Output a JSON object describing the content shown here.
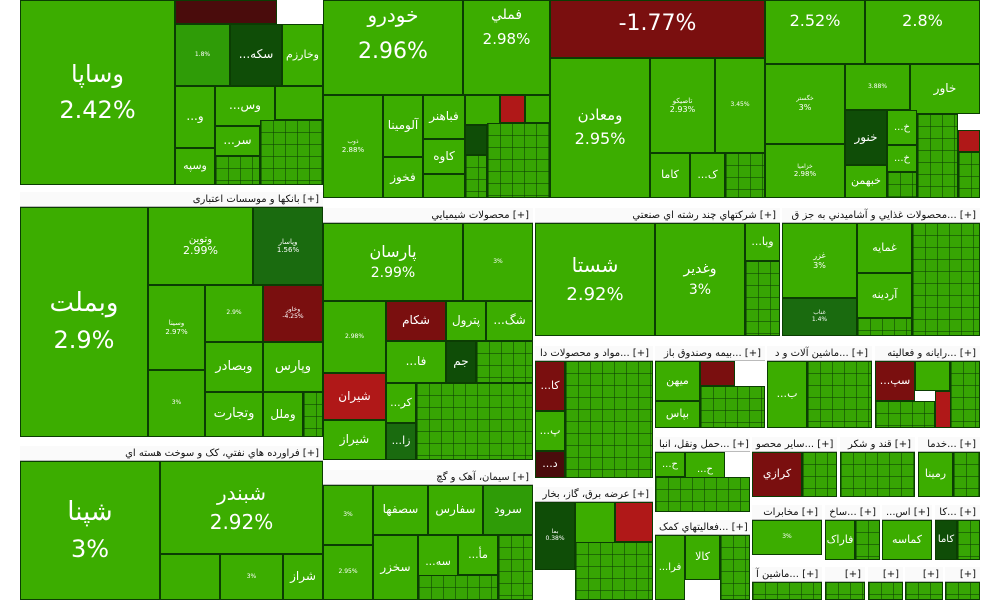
{
  "sectors": {
    "banks": "بانکها و موسسات اعتباری [+]",
    "refinery": "فراورده هاي نفتي، کک و سوخت هسته اي [+]",
    "chemical": "محصولات شيميايي [+]",
    "cement": "سيمان، آهک و گچ [+]",
    "multi": "شرکتهاي چند رشته اي صنعتي [+]",
    "food": "محصولات غذايي و آشاميدني به جز ق... [+]",
    "materials": "مواد و محصولات دا... [+]",
    "insurance": "بيمه وصندوق باز... [+]",
    "machinery": "ماشين آلات و د... [+]",
    "it": "رايانه و فعاليته... [+]",
    "transport": "حمل ونقل، انبا... [+]",
    "otherMining": "ساير محصو... [+]",
    "sugar": "قند و شکر [+]",
    "services": "خدما... [+]",
    "utilities": "عرضه برق، گاز، بخار [+]",
    "auxiliary": "فعاليتهاي کمک... [+]",
    "telecom": "مخابرات [+]",
    "construction": "ساخ... [+]",
    "pharma": "...اس [+]",
    "tile": "کا... [+]",
    "devices": "ماشين آ... [+]",
    "s1": "[+]",
    "s2": "[+]",
    "s3": "[+]",
    "s4": "[+]"
  },
  "tiles": {
    "khodro": {
      "name": "خودرو",
      "pct": "2.96%"
    },
    "famli": {
      "name": "فملي",
      "pct": "2.98%"
    },
    "darkTop": {
      "name": "",
      "pct": "-1.77%"
    },
    "topA": {
      "name": "",
      "pct": "2.52%"
    },
    "topB": {
      "name": "",
      "pct": "2.8%"
    },
    "vsapa": {
      "name": "وساپا",
      "pct": "2.42%"
    },
    "sakkeh": {
      "name": "...سکه"
    },
    "kharzam": {
      "name": "وخارزم"
    },
    "vos": {
      "name": "...وس"
    },
    "o": {
      "name": "...و"
    },
    "sar": {
      "name": "...سر"
    },
    "vesapeh": {
      "name": "وسپه"
    },
    "vamaaden": {
      "name": "ومعادن",
      "pct": "2.95%"
    },
    "tapiko": {
      "name": "تاصيكو",
      "pct": "2.93%"
    },
    "kama": {
      "name": "کاما"
    },
    "dk": {
      "name": "...ک"
    },
    "fabahonar": {
      "name": "فباهنر"
    },
    "alumina": {
      "name": "آلومينا"
    },
    "kaveh": {
      "name": "کاوه"
    },
    "fakhoz": {
      "name": "فخوز"
    },
    "zob": {
      "name": "ذوب",
      "pct": "2.88%"
    },
    "khavar": {
      "name": "خاور"
    },
    "khanoor": {
      "name": "خنور"
    },
    "khabahman": {
      "name": "خبهمن"
    },
    "khgostar": {
      "name": "خگستر",
      "pct": "3%"
    },
    "khzamia": {
      "name": "خزاميا",
      "pct": "2.98%"
    },
    "vbemellat": {
      "name": "وبملت",
      "pct": "2.9%"
    },
    "vtovin": {
      "name": "وتوين",
      "pct": "2.99%"
    },
    "vpasar": {
      "name": "وپاسار",
      "pct": "1.56%"
    },
    "vbsader": {
      "name": "وبصادر"
    },
    "vpars": {
      "name": "وپارس"
    },
    "vtejarat": {
      "name": "وتجارت"
    },
    "vmellal": {
      "name": "وملل"
    },
    "vsina": {
      "name": "وسينا",
      "pct": "2.97%"
    },
    "vkhavar": {
      "name": "وخاور",
      "pct": "-4.25%"
    },
    "shabandar": {
      "name": "شبندر",
      "pct": "2.92%"
    },
    "shepna": {
      "name": "شپنا",
      "pct": "3%"
    },
    "shiraz": {
      "name": "شراز"
    },
    "parsan": {
      "name": "پارسان",
      "pct": "2.99%"
    },
    "shekam": {
      "name": "شکام"
    },
    "petrol": {
      "name": "پترول"
    },
    "shirvan": {
      "name": "شيران"
    },
    "shiraz2": {
      "name": "شيراز"
    },
    "jam": {
      "name": "جم"
    },
    "fa": {
      "name": "...فا"
    },
    "shagh": {
      "name": "...شگ"
    },
    "kar": {
      "name": "...کر"
    },
    "za": {
      "name": "...زا"
    },
    "ab": {
      "name": "...ا"
    },
    "saroud": {
      "name": "سرود"
    },
    "sefars": {
      "name": "سفارس"
    },
    "sesfaha": {
      "name": "سصفها"
    },
    "sekhzar": {
      "name": "سخزر"
    },
    "sameh": {
      "name": "...سه"
    },
    "sama": {
      "name": "...مأ"
    },
    "shasta": {
      "name": "شستا",
      "pct": "2.92%"
    },
    "vghadir": {
      "name": "وغدير",
      "pct": "3%"
    },
    "vba": {
      "name": "...وبا"
    },
    "ghamayeh": {
      "name": "غمايه"
    },
    "ghardineh": {
      "name": "آردينه"
    },
    "ghazar": {
      "name": "غزر",
      "pct": "3%"
    },
    "ghnab": {
      "name": "غناب",
      "pct": "1.4%"
    },
    "kaa": {
      "name": "...کا"
    },
    "kp": {
      "name": "...پ"
    },
    "kd": {
      "name": "...د"
    },
    "mihan": {
      "name": "ميهن"
    },
    "bapas": {
      "name": "بپاس"
    },
    "b": {
      "name": "...ب"
    },
    "sep": {
      "name": "...سپ"
    },
    "hh": {
      "name": "...ح"
    },
    "hh2": {
      "name": "...ح"
    },
    "karazi": {
      "name": "کرازي"
    },
    "ramina": {
      "name": "رمينا"
    },
    "kala": {
      "name": "کالا"
    },
    "fara": {
      "name": "...فرا"
    },
    "faraak": {
      "name": "فاراک"
    },
    "kamaseh": {
      "name": "کماسه"
    },
    "katema": {
      "name": "کاما"
    },
    "bama": {
      "name": "بما",
      "pct": "0.38%"
    }
  }
}
